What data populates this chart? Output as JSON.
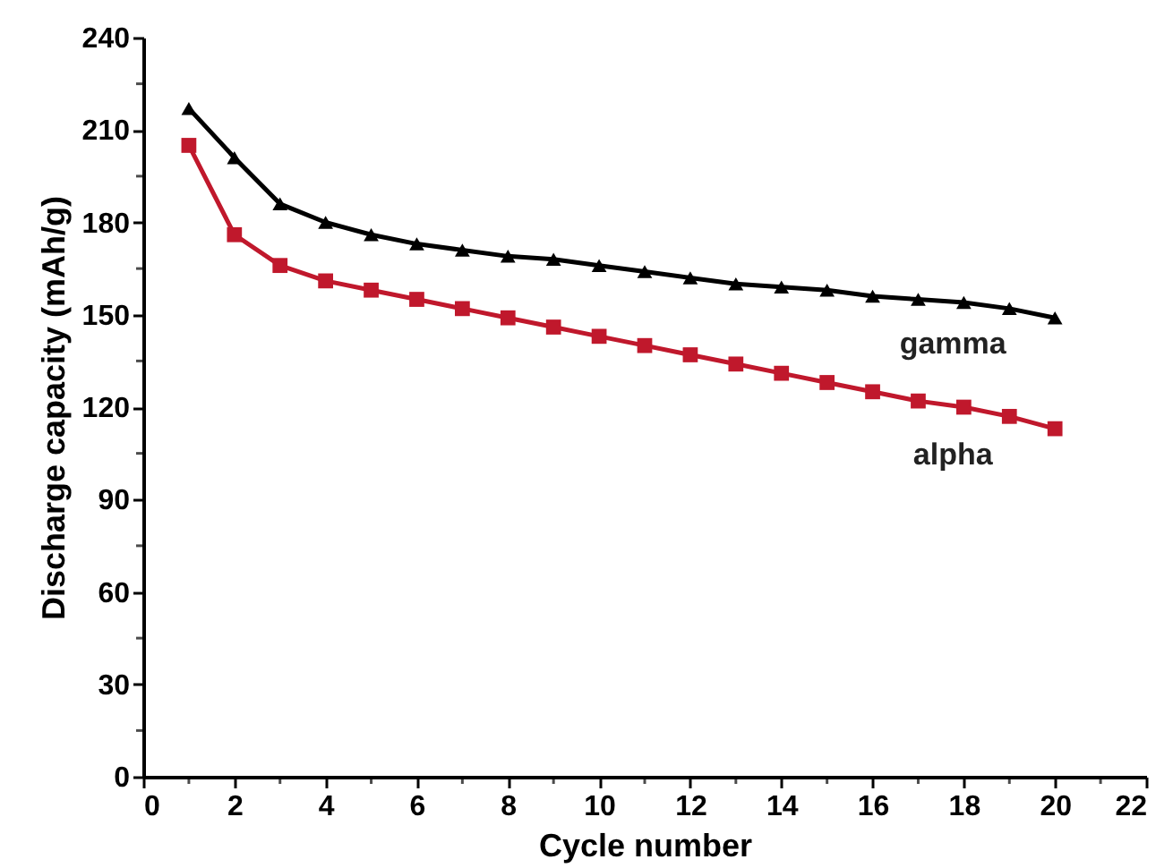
{
  "chart_data": {
    "type": "line",
    "xlabel": "Cycle number",
    "ylabel": "Discharge capacity (mAh/g)",
    "x": [
      1,
      2,
      3,
      4,
      5,
      6,
      7,
      8,
      9,
      10,
      11,
      12,
      13,
      14,
      15,
      16,
      17,
      18,
      19,
      20
    ],
    "series": [
      {
        "name": "gamma",
        "color": "#000000",
        "marker": "triangle",
        "values": [
          217,
          201,
          186,
          180,
          176,
          173,
          171,
          169,
          168,
          166,
          164,
          162,
          160,
          159,
          158,
          156,
          155,
          154,
          152,
          149
        ]
      },
      {
        "name": "alpha",
        "color": "#c0182c",
        "marker": "square",
        "values": [
          205,
          176,
          166,
          161,
          158,
          155,
          152,
          149,
          146,
          143,
          140,
          137,
          134,
          131,
          128,
          125,
          122,
          120,
          117,
          113
        ]
      }
    ],
    "xlim": [
      0,
      22
    ],
    "xticks": [
      0,
      {
        "value": 1,
        "label": null
      },
      2,
      {
        "value": 3,
        "label": null
      },
      4,
      {
        "value": 5,
        "label": null
      },
      6,
      {
        "value": 7,
        "label": null
      },
      8,
      {
        "value": 9,
        "label": null
      },
      10,
      {
        "value": 11,
        "label": null
      },
      12,
      {
        "value": 13,
        "label": null
      },
      14,
      {
        "value": 15,
        "label": null
      },
      16,
      {
        "value": 17,
        "label": null
      },
      18,
      {
        "value": 19,
        "label": null
      },
      20,
      {
        "value": 21,
        "label": null
      },
      22
    ],
    "ylim": [
      0,
      240
    ],
    "yticks": [
      0,
      {
        "value": 15,
        "label": null
      },
      30,
      {
        "value": 45,
        "label": null
      },
      60,
      {
        "value": 75,
        "label": null
      },
      90,
      {
        "value": 105,
        "label": null
      },
      120,
      {
        "value": 135,
        "label": null
      },
      150,
      {
        "value": 165,
        "label": null
      },
      180,
      {
        "value": 195,
        "label": null
      },
      210,
      {
        "value": 225,
        "label": null
      },
      240
    ],
    "grid": false,
    "legend": false,
    "line_style": "solid"
  }
}
